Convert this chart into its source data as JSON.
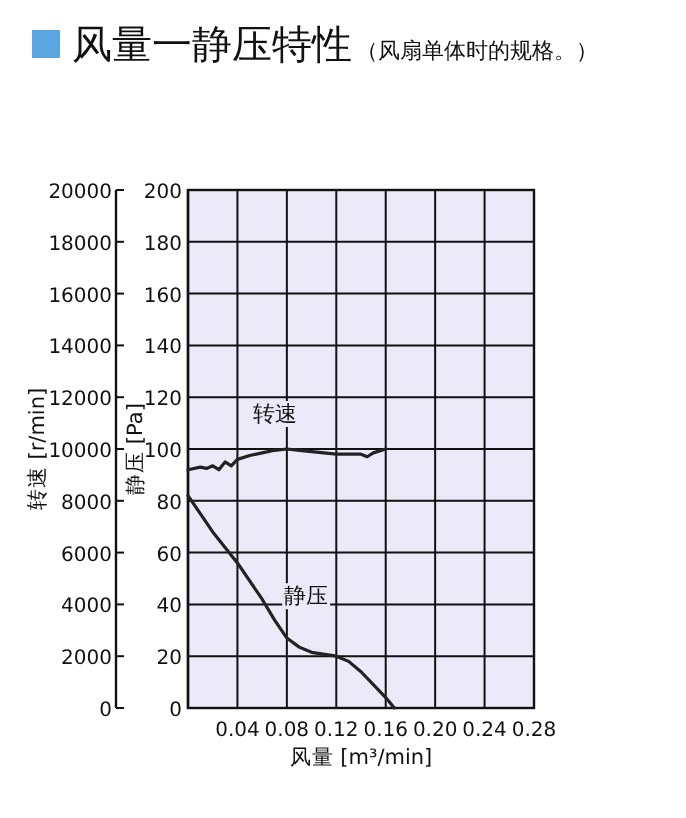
{
  "chart_data": {
    "type": "line",
    "title": "风量一静压特性",
    "subtitle": "（风扇单体时的规格。）",
    "xlabel": "风量 [m³/min]",
    "ylabel": "静压 [Pa]",
    "y2label": "转速 [r/min]",
    "xlim": [
      0,
      0.28
    ],
    "xticks": [
      0.04,
      0.08,
      0.12,
      0.16,
      {
        "value": 0.2,
        "label": "0.20"
      },
      0.24,
      0.28
    ],
    "ylim": [
      0,
      200
    ],
    "yticks": [
      0,
      20,
      40,
      60,
      80,
      100,
      120,
      140,
      160,
      180,
      200
    ],
    "y2lim": [
      0,
      20000
    ],
    "y2ticks": [
      0,
      2000,
      4000,
      6000,
      8000,
      10000,
      12000,
      14000,
      16000,
      18000,
      20000
    ],
    "grid": true,
    "series": [
      {
        "name": "转速",
        "color": "#222222",
        "axis": "y2",
        "x": [
          0,
          0.01,
          0.015,
          0.02,
          0.025,
          0.03,
          0.035,
          0.04,
          0.05,
          0.06,
          0.07,
          0.08,
          0.09,
          0.1,
          0.12,
          0.14,
          0.145,
          0.15,
          0.16
        ],
        "values": [
          9200,
          9300,
          9250,
          9350,
          9200,
          9500,
          9350,
          9600,
          9750,
          9850,
          9950,
          10000,
          9950,
          9900,
          9800,
          9800,
          9700,
          9850,
          10000
        ]
      },
      {
        "name": "静压",
        "color": "#222222",
        "x": [
          0,
          0.02,
          0.04,
          0.06,
          0.07,
          0.08,
          0.09,
          0.1,
          0.12,
          0.13,
          0.14,
          0.15,
          0.16,
          0.167
        ],
        "values": [
          82,
          68,
          56,
          42,
          34,
          27,
          23.5,
          21.5,
          20,
          18,
          14,
          9,
          4,
          0
        ]
      }
    ]
  }
}
